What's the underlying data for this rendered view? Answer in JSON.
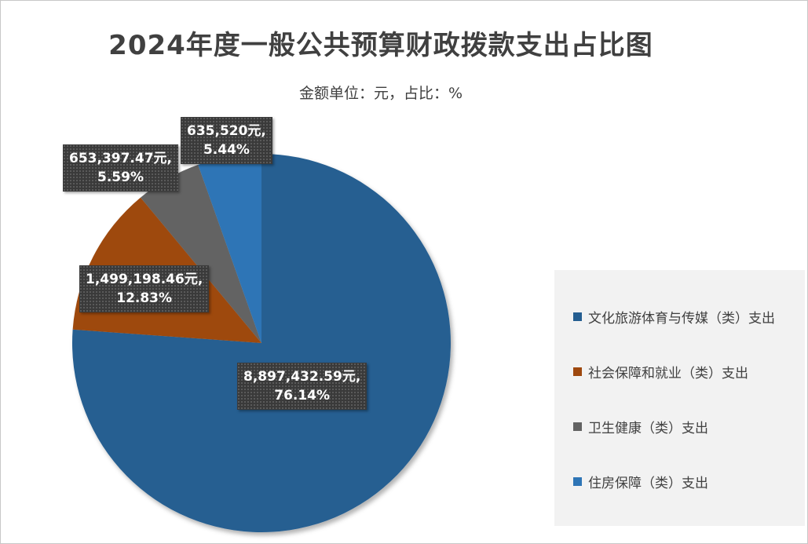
{
  "title": "2024年度一般公共预算财政拨款支出占比图",
  "subtitle": "金额单位：元，占比：%",
  "chart_data": {
    "type": "pie",
    "title": "2024年度一般公共预算财政拨款支出占比图",
    "subtitle": "金额单位：元，占比：%",
    "legend_position": "right",
    "slices": [
      {
        "name": "文化旅游体育与传媒（类）支出",
        "value": 8897432.59,
        "percent": 76.14,
        "value_label": "8,897,432.59元,",
        "percent_label": "76.14%",
        "color": "#255e91"
      },
      {
        "name": "社会保障和就业（类）支出",
        "value": 1499198.46,
        "percent": 12.83,
        "value_label": "1,499,198.46元,",
        "percent_label": "12.83%",
        "color": "#9e480e"
      },
      {
        "name": "卫生健康（类）支出",
        "value": 653397.47,
        "percent": 5.59,
        "value_label": "653,397.47元,",
        "percent_label": "5.59%",
        "color": "#636363"
      },
      {
        "name": "住房保障（类）支出",
        "value": 635520,
        "percent": 5.44,
        "value_label": "635,520元,",
        "percent_label": "5.44%",
        "color": "#2e75b6"
      }
    ]
  }
}
